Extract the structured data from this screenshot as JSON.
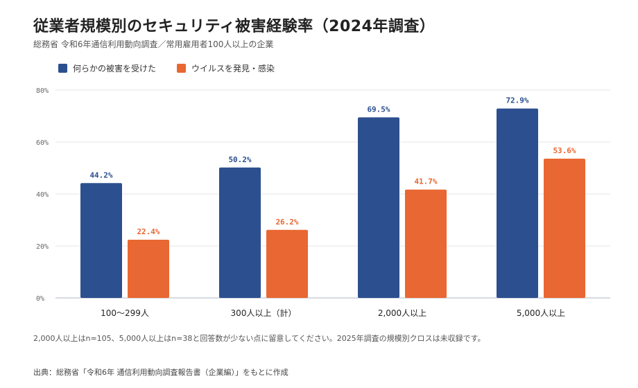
{
  "header": {
    "title": "従業者規模別のセキュリティ被害経験率（2024年調査）",
    "subtitle": "総務省 令和6年通信利用動向調査／常用雇用者100人以上の企業"
  },
  "colors": {
    "damage": "#2c4f8f",
    "virus": "#e96732",
    "grid": "#e6e6e6",
    "axis": "#c9cdd6"
  },
  "chart_data": {
    "type": "bar",
    "categories": [
      "100〜299人",
      "300人以上（計）",
      "2,000人以上",
      "5,000人以上"
    ],
    "series": [
      {
        "name": "何らかの被害を受けた",
        "values": [
          44.2,
          50.2,
          69.5,
          72.9
        ],
        "labels": [
          "44.2%",
          "50.2%",
          "69.5%",
          "72.9%"
        ]
      },
      {
        "name": "ウイルスを発見・感染",
        "values": [
          22.4,
          26.2,
          41.7,
          53.6
        ],
        "labels": [
          "22.4%",
          "26.2%",
          "41.7%",
          "53.6%"
        ]
      }
    ],
    "ylim": [
      0,
      80
    ],
    "yticks": [
      0,
      20,
      40,
      60,
      80
    ],
    "ytick_labels": [
      "0%",
      "20%",
      "40%",
      "60%",
      "80%"
    ],
    "grid": true,
    "legend": "top-left"
  },
  "footer": {
    "note": "2,000人以上はn=105、5,000人以上はn=38と回答数が少ない点に留意してください。2025年調査の規模別クロスは未収録です。",
    "source": "出典：総務省「令和6年 通信利用動向調査報告書（企業編）」をもとに作成"
  }
}
